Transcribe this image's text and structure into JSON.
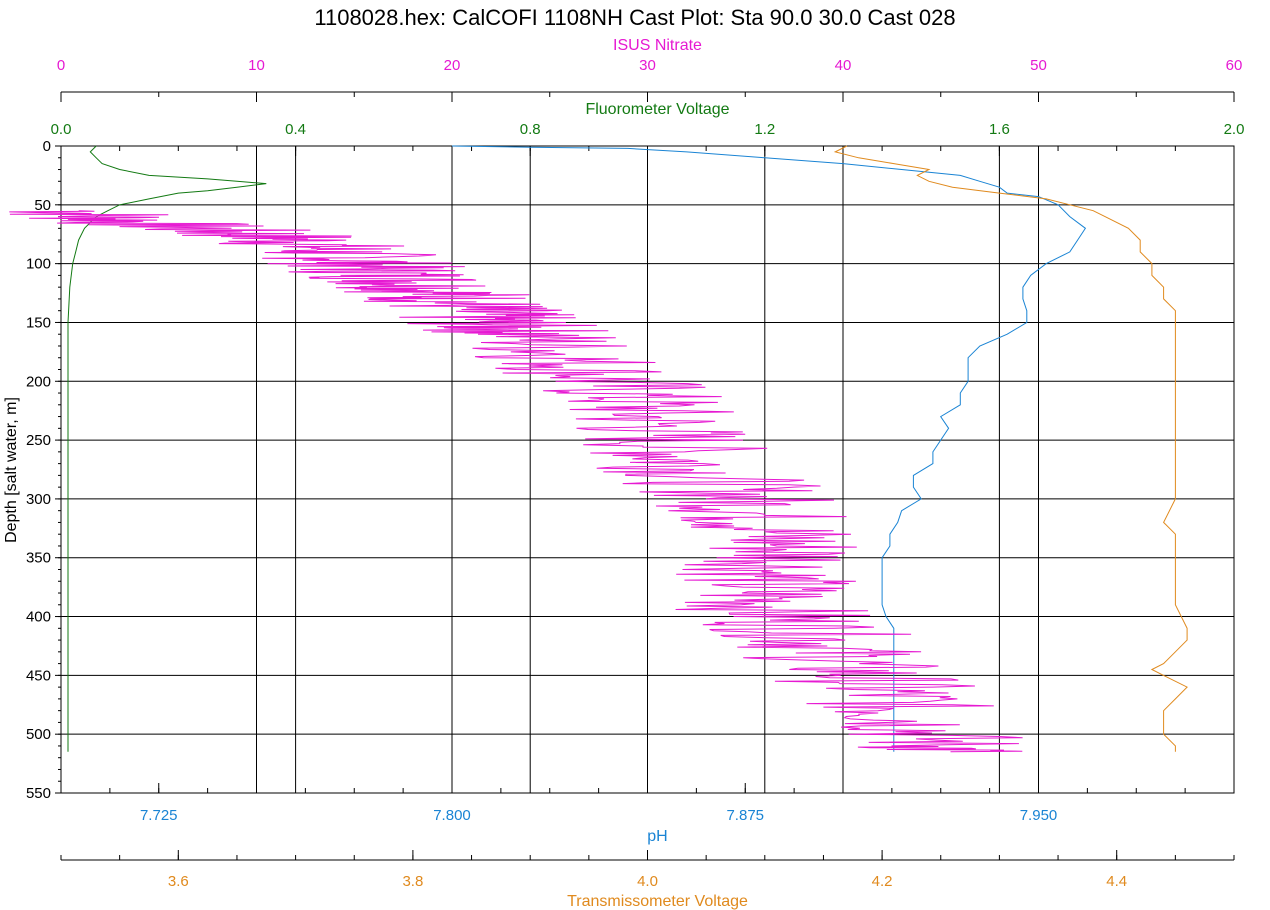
{
  "chart_data": {
    "type": "line",
    "title": "1108028.hex: CalCOFI 1108NH Cast Plot: Sta 90.0 30.0 Cast 028",
    "grid": true,
    "legend": "none",
    "y_axis": {
      "label": "Depth [salt water, m]",
      "range": [
        0,
        550
      ],
      "inverted": true,
      "ticks": [
        "0",
        "50",
        "100",
        "150",
        "200",
        "250",
        "300",
        "350",
        "400",
        "450",
        "500",
        "550"
      ],
      "color": "#000000"
    },
    "x_axes": [
      {
        "key": "nitrate",
        "label": "ISUS Nitrate",
        "position": "top",
        "range": [
          0,
          60
        ],
        "color": "#e619d2",
        "ticks": [
          "0",
          "10",
          "20",
          "30",
          "40",
          "50",
          "60"
        ]
      },
      {
        "key": "fluor",
        "label": "Fluorometer Voltage",
        "position": "top",
        "range": [
          0,
          2.0
        ],
        "color": "#137a13",
        "ticks": [
          "0.0",
          "0.4",
          "0.8",
          "1.2",
          "1.6",
          "2.0"
        ]
      },
      {
        "key": "ph",
        "label": "pH",
        "position": "bottom",
        "range": [
          7.7,
          8.0
        ],
        "color": "#1a84d4",
        "ticks": [
          "7.725",
          "7.800",
          "7.875",
          "7.950"
        ]
      },
      {
        "key": "trans",
        "label": "Transmissometer Voltage",
        "position": "bottom",
        "range": [
          3.5,
          4.5
        ],
        "color": "#e08a1e",
        "ticks": [
          "3.6",
          "3.8",
          "4.0",
          "4.2",
          "4.4"
        ]
      }
    ],
    "series": [
      {
        "axis": "ph",
        "color": "#1a84d4",
        "points": [
          [
            0,
            7.8
          ],
          [
            1,
            7.82
          ],
          [
            2,
            7.845
          ],
          [
            5,
            7.86
          ],
          [
            10,
            7.88
          ],
          [
            15,
            7.9
          ],
          [
            20,
            7.915
          ],
          [
            25,
            7.93
          ],
          [
            30,
            7.935
          ],
          [
            35,
            7.94
          ],
          [
            40,
            7.942
          ],
          [
            43,
            7.95
          ],
          [
            50,
            7.955
          ],
          [
            60,
            7.958
          ],
          [
            70,
            7.962
          ],
          [
            80,
            7.96
          ],
          [
            90,
            7.958
          ],
          [
            100,
            7.952
          ],
          [
            110,
            7.948
          ],
          [
            120,
            7.946
          ],
          [
            130,
            7.946
          ],
          [
            140,
            7.947
          ],
          [
            150,
            7.947
          ],
          [
            160,
            7.942
          ],
          [
            170,
            7.935
          ],
          [
            180,
            7.932
          ],
          [
            190,
            7.932
          ],
          [
            200,
            7.932
          ],
          [
            210,
            7.93
          ],
          [
            220,
            7.93
          ],
          [
            230,
            7.925
          ],
          [
            240,
            7.927
          ],
          [
            250,
            7.925
          ],
          [
            260,
            7.923
          ],
          [
            270,
            7.923
          ],
          [
            280,
            7.918
          ],
          [
            290,
            7.918
          ],
          [
            300,
            7.92
          ],
          [
            310,
            7.915
          ],
          [
            320,
            7.914
          ],
          [
            330,
            7.912
          ],
          [
            340,
            7.912
          ],
          [
            350,
            7.91
          ],
          [
            360,
            7.91
          ],
          [
            370,
            7.91
          ],
          [
            380,
            7.91
          ],
          [
            390,
            7.91
          ],
          [
            400,
            7.911
          ],
          [
            410,
            7.913
          ],
          [
            420,
            7.913
          ],
          [
            430,
            7.913
          ],
          [
            440,
            7.913
          ],
          [
            450,
            7.913
          ],
          [
            460,
            7.913
          ],
          [
            470,
            7.913
          ],
          [
            480,
            7.913
          ],
          [
            490,
            7.913
          ],
          [
            500,
            7.913
          ],
          [
            510,
            7.913
          ],
          [
            515,
            7.913
          ]
        ]
      },
      {
        "axis": "trans",
        "color": "#e08a1e",
        "points": [
          [
            0,
            4.17
          ],
          [
            5,
            4.16
          ],
          [
            10,
            4.18
          ],
          [
            15,
            4.21
          ],
          [
            20,
            4.24
          ],
          [
            25,
            4.23
          ],
          [
            30,
            4.24
          ],
          [
            35,
            4.26
          ],
          [
            40,
            4.3
          ],
          [
            45,
            4.34
          ],
          [
            50,
            4.36
          ],
          [
            55,
            4.38
          ],
          [
            60,
            4.39
          ],
          [
            70,
            4.41
          ],
          [
            80,
            4.42
          ],
          [
            90,
            4.42
          ],
          [
            100,
            4.43
          ],
          [
            110,
            4.43
          ],
          [
            120,
            4.44
          ],
          [
            130,
            4.44
          ],
          [
            140,
            4.45
          ],
          [
            150,
            4.45
          ],
          [
            160,
            4.45
          ],
          [
            180,
            4.45
          ],
          [
            200,
            4.45
          ],
          [
            220,
            4.45
          ],
          [
            240,
            4.45
          ],
          [
            260,
            4.45
          ],
          [
            280,
            4.45
          ],
          [
            300,
            4.45
          ],
          [
            320,
            4.44
          ],
          [
            330,
            4.45
          ],
          [
            350,
            4.45
          ],
          [
            370,
            4.45
          ],
          [
            390,
            4.45
          ],
          [
            410,
            4.46
          ],
          [
            420,
            4.46
          ],
          [
            430,
            4.45
          ],
          [
            440,
            4.44
          ],
          [
            445,
            4.43
          ],
          [
            450,
            4.44
          ],
          [
            460,
            4.46
          ],
          [
            470,
            4.45
          ],
          [
            480,
            4.44
          ],
          [
            490,
            4.44
          ],
          [
            500,
            4.44
          ],
          [
            510,
            4.45
          ],
          [
            515,
            4.45
          ]
        ]
      },
      {
        "axis": "fluor",
        "color": "#137a13",
        "points": [
          [
            0,
            0.06
          ],
          [
            5,
            0.05
          ],
          [
            10,
            0.06
          ],
          [
            15,
            0.07
          ],
          [
            20,
            0.1
          ],
          [
            25,
            0.15
          ],
          [
            28,
            0.25
          ],
          [
            30,
            0.3
          ],
          [
            32,
            0.35
          ],
          [
            35,
            0.3
          ],
          [
            38,
            0.25
          ],
          [
            40,
            0.2
          ],
          [
            45,
            0.15
          ],
          [
            50,
            0.1
          ],
          [
            55,
            0.08
          ],
          [
            60,
            0.06
          ],
          [
            70,
            0.04
          ],
          [
            80,
            0.03
          ],
          [
            90,
            0.025
          ],
          [
            100,
            0.02
          ],
          [
            120,
            0.015
          ],
          [
            150,
            0.012
          ],
          [
            200,
            0.012
          ],
          [
            250,
            0.012
          ],
          [
            300,
            0.012
          ],
          [
            350,
            0.012
          ],
          [
            400,
            0.012
          ],
          [
            450,
            0.012
          ],
          [
            500,
            0.012
          ],
          [
            515,
            0.012
          ]
        ]
      },
      {
        "axis": "nitrate",
        "color": "#e619d2",
        "points": [
          [
            55,
            1
          ],
          [
            60,
            2
          ],
          [
            65,
            4
          ],
          [
            70,
            7
          ],
          [
            75,
            10
          ],
          [
            80,
            12
          ],
          [
            85,
            13
          ],
          [
            90,
            14
          ],
          [
            95,
            15
          ],
          [
            100,
            15.5
          ],
          [
            105,
            16
          ],
          [
            110,
            17
          ],
          [
            115,
            18
          ],
          [
            120,
            19
          ],
          [
            125,
            19.5
          ],
          [
            130,
            20
          ],
          [
            135,
            20.5
          ],
          [
            140,
            21
          ],
          [
            145,
            21.5
          ],
          [
            150,
            22
          ],
          [
            155,
            23
          ],
          [
            160,
            24
          ],
          [
            170,
            25
          ],
          [
            180,
            26
          ],
          [
            190,
            27
          ],
          [
            200,
            28
          ],
          [
            210,
            29
          ],
          [
            220,
            29.5
          ],
          [
            230,
            30
          ],
          [
            240,
            30.5
          ],
          [
            250,
            31
          ],
          [
            260,
            31.5
          ],
          [
            270,
            32
          ],
          [
            280,
            33
          ],
          [
            290,
            34
          ],
          [
            300,
            35
          ],
          [
            310,
            35.5
          ],
          [
            320,
            36
          ],
          [
            330,
            36.5
          ],
          [
            340,
            37
          ],
          [
            350,
            37.5
          ],
          [
            360,
            36.5
          ],
          [
            370,
            36
          ],
          [
            380,
            36
          ],
          [
            390,
            36
          ],
          [
            400,
            37
          ],
          [
            410,
            38
          ],
          [
            420,
            39
          ],
          [
            430,
            39.5
          ],
          [
            440,
            40
          ],
          [
            450,
            41
          ],
          [
            460,
            42
          ],
          [
            470,
            42.5
          ],
          [
            480,
            43
          ],
          [
            490,
            44
          ],
          [
            500,
            44.5
          ],
          [
            510,
            45
          ],
          [
            515,
            45.5
          ]
        ]
      }
    ]
  }
}
